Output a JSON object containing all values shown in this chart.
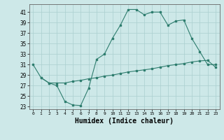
{
  "x_line1": [
    0,
    1,
    2,
    3,
    4,
    5,
    6,
    7,
    8,
    9,
    10,
    11,
    12,
    13,
    14,
    15,
    16,
    17,
    18,
    19,
    20,
    21,
    22,
    23
  ],
  "y_line1": [
    31,
    28.5,
    27.5,
    27,
    24,
    23.3,
    23.2,
    26.5,
    32,
    33,
    36,
    38.5,
    41.5,
    41.5,
    40.5,
    41,
    41,
    38.5,
    39.3,
    39.5,
    36,
    33.5,
    31,
    31
  ],
  "x_line2": [
    1,
    2,
    3,
    4,
    5,
    6,
    7,
    8,
    9,
    10,
    11,
    12,
    13,
    14,
    15,
    16,
    17,
    18,
    19,
    20,
    21,
    22,
    23
  ],
  "y_line2": [
    28.5,
    27.5,
    27.5,
    27.5,
    27.8,
    28.0,
    28.3,
    28.5,
    28.8,
    29.0,
    29.3,
    29.6,
    29.8,
    30.0,
    30.2,
    30.5,
    30.8,
    31.0,
    31.2,
    31.5,
    31.7,
    31.8,
    30.5
  ],
  "line_color": "#2e7d6e",
  "bg_color": "#cde8e8",
  "grid_color": "#aacfcf",
  "xlabel": "Humidex (Indice chaleur)",
  "xlabel_fontsize": 7,
  "ylim": [
    22.5,
    42.5
  ],
  "xlim": [
    -0.5,
    23.5
  ],
  "yticks": [
    23,
    25,
    27,
    29,
    31,
    33,
    35,
    37,
    39,
    41
  ],
  "xticks": [
    0,
    1,
    2,
    3,
    4,
    5,
    6,
    7,
    8,
    9,
    10,
    11,
    12,
    13,
    14,
    15,
    16,
    17,
    18,
    19,
    20,
    21,
    22,
    23
  ]
}
